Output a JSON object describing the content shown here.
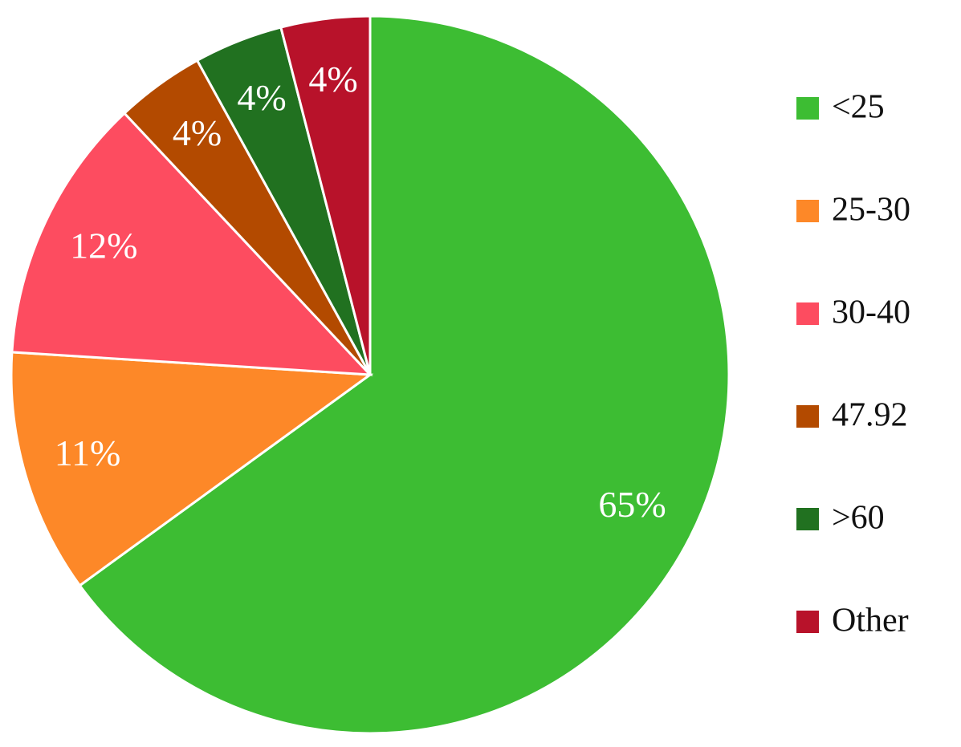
{
  "chart_data": {
    "type": "pie",
    "categories": [
      "<25",
      "25-30",
      "30-40",
      "47.92",
      ">60",
      "Other"
    ],
    "values": [
      65,
      11,
      12,
      4,
      4,
      4
    ],
    "value_labels": [
      "65%",
      "11%",
      "12%",
      "4%",
      "4%",
      "4%"
    ],
    "colors": [
      "#3dbd33",
      "#fd8828",
      "#fd4c60",
      "#b34a00",
      "#217120",
      "#b8122a"
    ],
    "legend": "right"
  }
}
